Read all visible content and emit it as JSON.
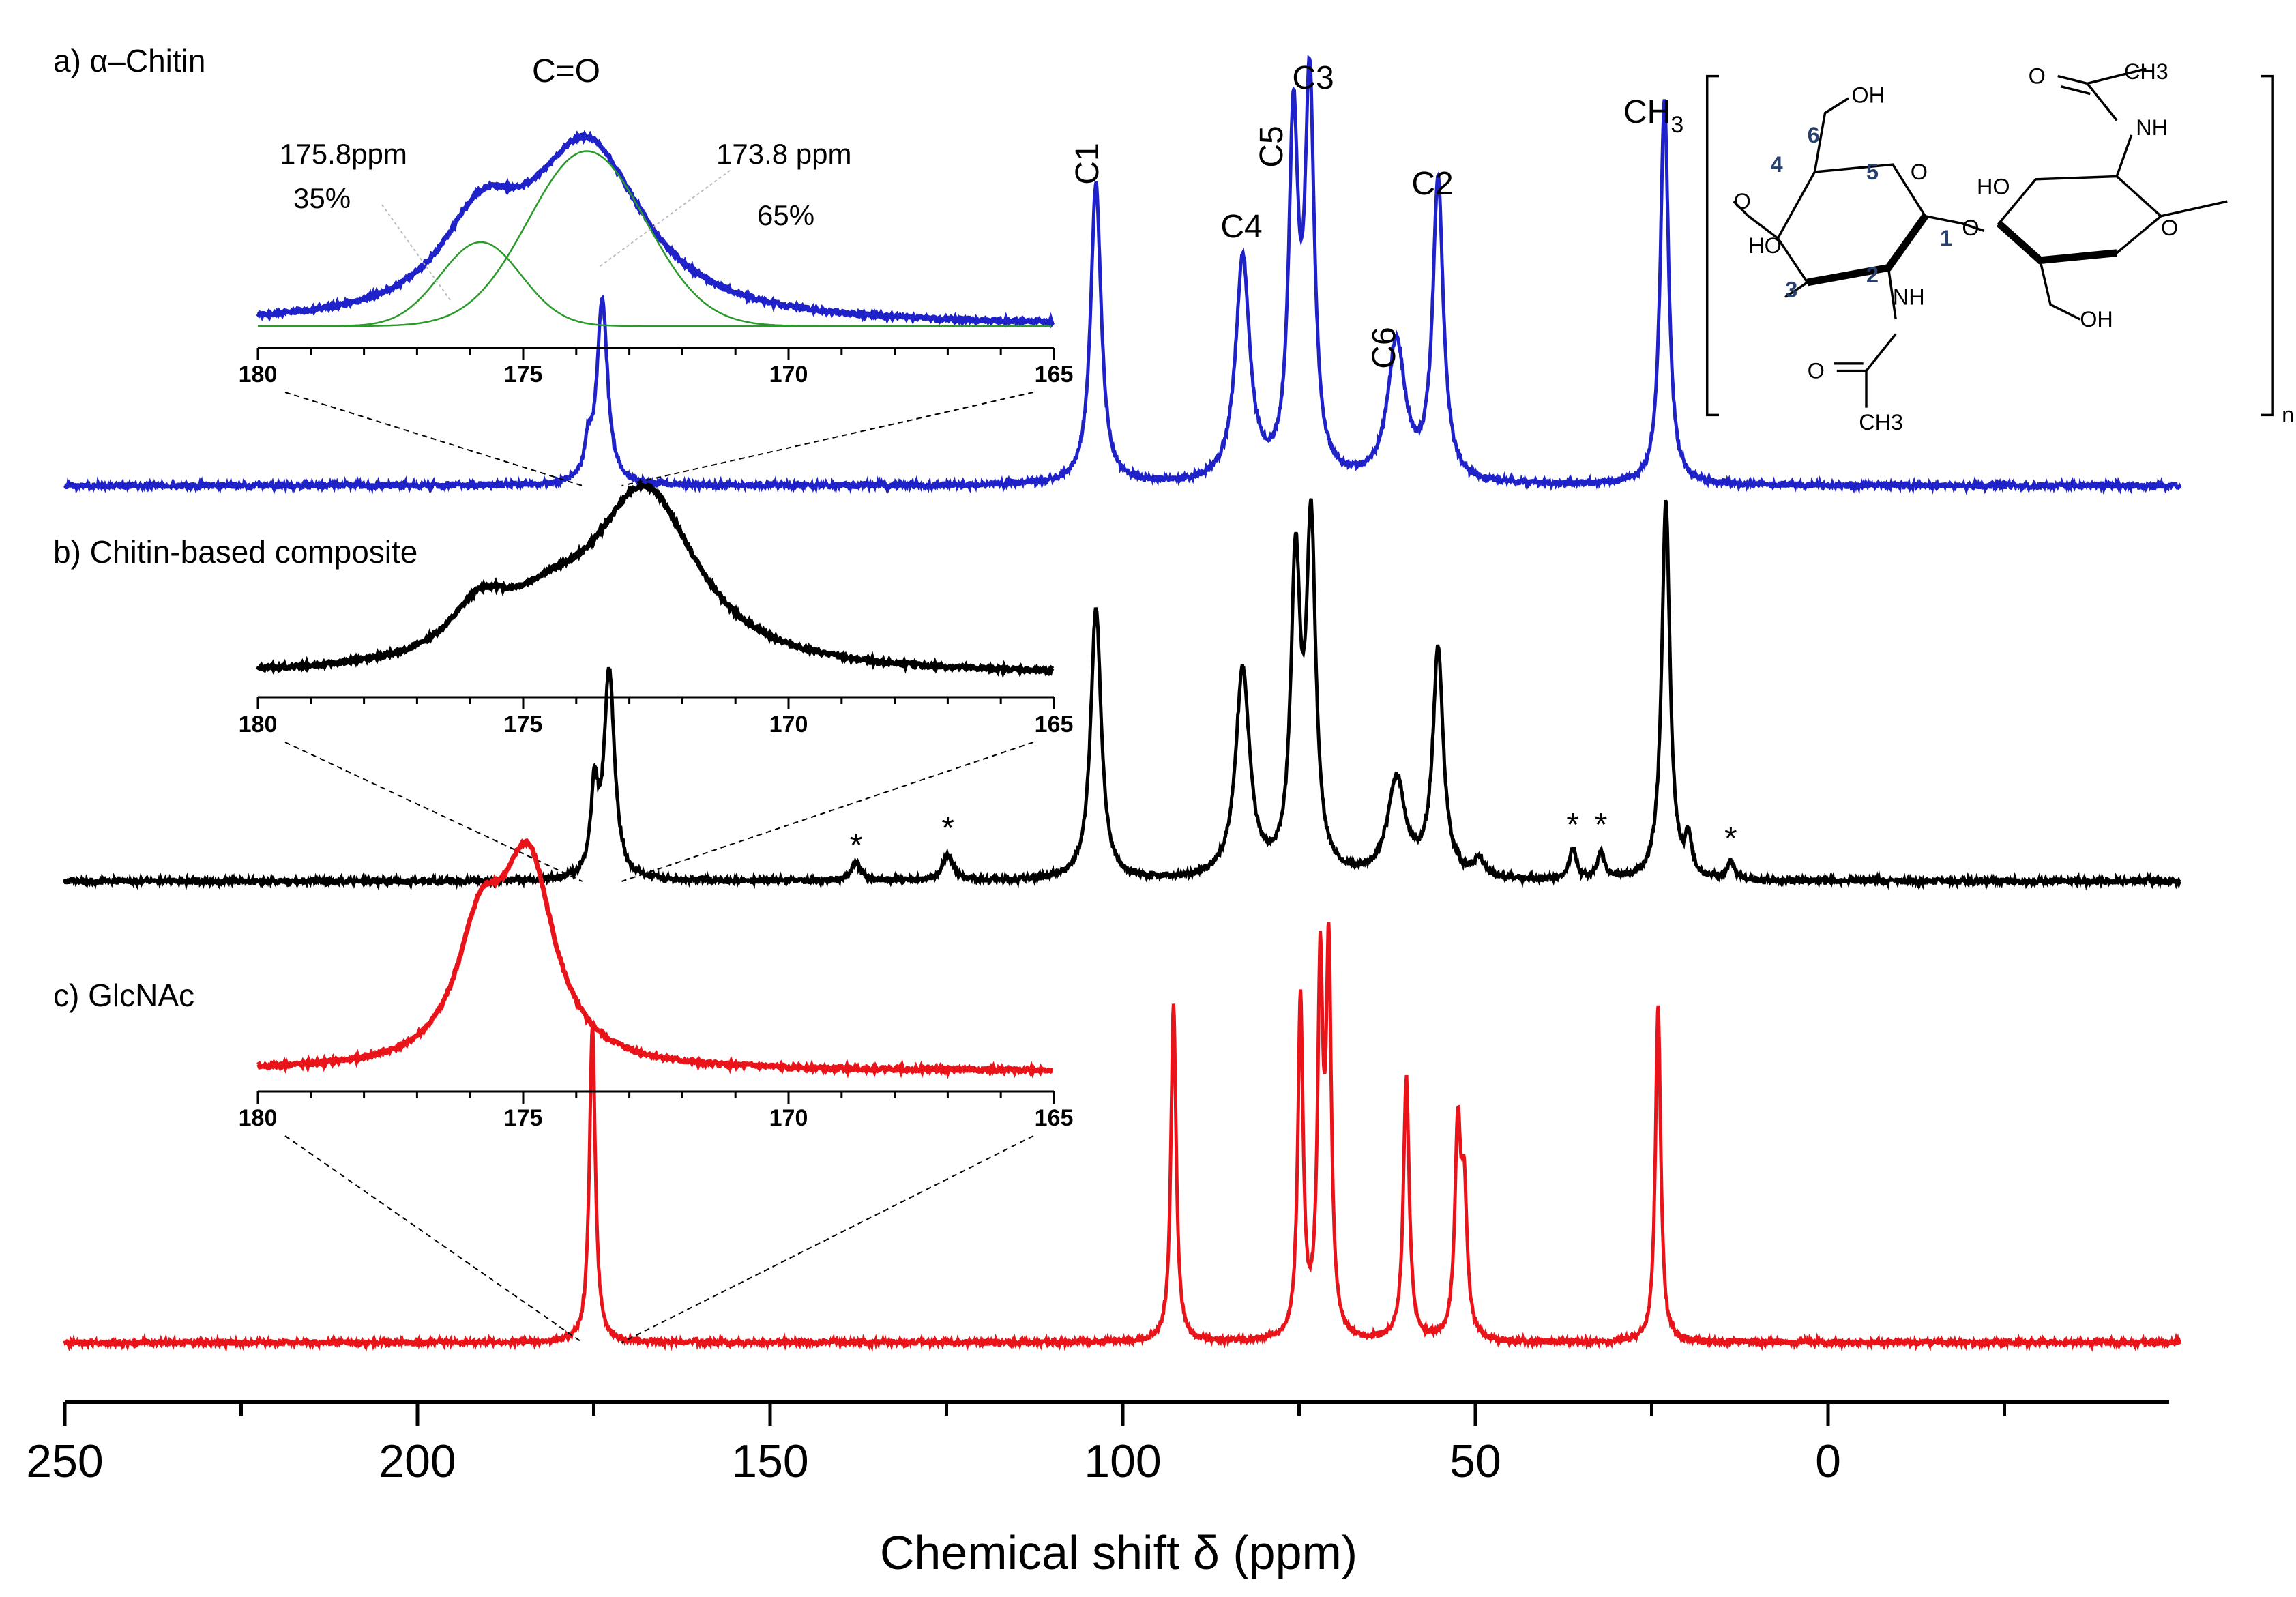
{
  "chart_data": {
    "type": "line",
    "title": "",
    "xlabel": "Chemical shift δ (ppm)",
    "xlim": [
      250,
      -50
    ],
    "reversed_x": true,
    "x_ticks": [
      {
        "value": 250,
        "label": "250"
      },
      {
        "value": 200,
        "label": "200"
      },
      {
        "value": 150,
        "label": "150"
      },
      {
        "value": 100,
        "label": "100"
      },
      {
        "value": 50,
        "label": "50"
      },
      {
        "value": 0,
        "label": "0"
      }
    ],
    "x_minor_ticks": [
      225,
      175,
      125,
      75,
      25,
      -25
    ],
    "series": [
      {
        "name": "a) α–Chitin",
        "label": "a) α–Chitin",
        "color": "#1f22c8",
        "peaks": [
          {
            "x": 173.8,
            "h": 0.48,
            "w": 0.9
          },
          {
            "x": 175.8,
            "h": 0.08,
            "w": 0.6
          },
          {
            "x": 103.8,
            "h": 0.78,
            "w": 0.9
          },
          {
            "x": 83.0,
            "h": 0.58,
            "w": 1.2
          },
          {
            "x": 75.8,
            "h": 0.9,
            "w": 0.8
          },
          {
            "x": 73.5,
            "h": 1.0,
            "w": 0.8
          },
          {
            "x": 61.2,
            "h": 0.36,
            "w": 1.5
          },
          {
            "x": 55.3,
            "h": 0.78,
            "w": 0.9
          },
          {
            "x": 23.2,
            "h": 1.0,
            "w": 0.7
          }
        ],
        "peak_labels": [
          {
            "text": "C1",
            "x": 103.8,
            "rotate": true
          },
          {
            "text": "C4",
            "x": 83.0,
            "rotate": false
          },
          {
            "text": "C5",
            "x": 76.2,
            "rotate": true
          },
          {
            "text": "C3",
            "x": 73.0,
            "rotate": false
          },
          {
            "text": "C6",
            "x": 61.5,
            "rotate": true
          },
          {
            "text": "C2",
            "x": 55.5,
            "rotate": false
          }
        ],
        "ch3_label": {
          "main": "CH",
          "sub": "3"
        }
      },
      {
        "name": "b) Chitin-based composite",
        "label": "b) Chitin-based composite",
        "color": "#000000",
        "peaks": [
          {
            "x": 172.8,
            "h": 0.55,
            "w": 0.9
          },
          {
            "x": 174.9,
            "h": 0.22,
            "w": 0.6
          },
          {
            "x": 137.8,
            "h": 0.05,
            "w": 0.8
          },
          {
            "x": 124.8,
            "h": 0.07,
            "w": 0.9
          },
          {
            "x": 103.8,
            "h": 0.72,
            "w": 0.9
          },
          {
            "x": 83.0,
            "h": 0.55,
            "w": 1.2
          },
          {
            "x": 75.5,
            "h": 0.8,
            "w": 0.8
          },
          {
            "x": 73.3,
            "h": 0.9,
            "w": 0.8
          },
          {
            "x": 61.2,
            "h": 0.26,
            "w": 1.5
          },
          {
            "x": 55.3,
            "h": 0.6,
            "w": 0.9
          },
          {
            "x": 49.5,
            "h": 0.05,
            "w": 0.8
          },
          {
            "x": 36.2,
            "h": 0.08,
            "w": 0.6
          },
          {
            "x": 32.2,
            "h": 0.07,
            "w": 0.6
          },
          {
            "x": 23.0,
            "h": 1.0,
            "w": 0.7
          },
          {
            "x": 19.8,
            "h": 0.1,
            "w": 0.5
          },
          {
            "x": 13.8,
            "h": 0.05,
            "w": 0.6
          }
        ],
        "stars": [
          137.8,
          124.8,
          36.2,
          32.2,
          13.8
        ],
        "star_symbol": "*"
      },
      {
        "name": "c) GlcNAc",
        "label": "c) GlcNAc",
        "color": "#e8141a",
        "peaks": [
          {
            "x": 175.2,
            "h": 0.94,
            "w": 0.5
          },
          {
            "x": 92.8,
            "h": 1.0,
            "w": 0.45
          },
          {
            "x": 74.8,
            "h": 1.0,
            "w": 0.45
          },
          {
            "x": 72.0,
            "h": 1.05,
            "w": 0.45
          },
          {
            "x": 70.8,
            "h": 1.1,
            "w": 0.45
          },
          {
            "x": 59.8,
            "h": 0.78,
            "w": 0.5
          },
          {
            "x": 52.5,
            "h": 0.6,
            "w": 0.5
          },
          {
            "x": 51.6,
            "h": 0.4,
            "w": 0.5
          },
          {
            "x": 24.1,
            "h": 1.0,
            "w": 0.45
          }
        ]
      }
    ],
    "insets": [
      {
        "name": "a) inset",
        "color": "#1f22c8",
        "fit_color": "#2a9a2a",
        "x_ticks": [
          "180",
          "175",
          "170",
          "165"
        ],
        "title": "C=O",
        "components": [
          {
            "x": 175.8,
            "h": 0.48,
            "w": 0.9,
            "ppm_label": "175.8ppm",
            "pct_label": "35%"
          },
          {
            "x": 173.8,
            "h": 1.0,
            "w": 1.3,
            "ppm_label": "173.8 ppm",
            "pct_label": "65%"
          }
        ]
      },
      {
        "name": "b) inset",
        "color": "#000000",
        "x_ticks": [
          "180",
          "175",
          "170",
          "165"
        ],
        "components": [
          {
            "x": 175.8,
            "h": 0.25,
            "w": 0.7
          },
          {
            "x": 172.7,
            "h": 0.9,
            "w": 1.2
          },
          {
            "x": 174.5,
            "h": 0.2,
            "w": 1.0
          }
        ]
      },
      {
        "name": "c) inset",
        "color": "#e8141a",
        "x_ticks": [
          "180",
          "175",
          "170",
          "165"
        ],
        "components": [
          {
            "x": 175.8,
            "h": 0.62,
            "w": 0.55
          },
          {
            "x": 174.9,
            "h": 1.0,
            "w": 0.6
          }
        ]
      }
    ],
    "structure": {
      "labels": {
        "ch3_top": "CH3",
        "o_top": "O",
        "nh_top": "NH",
        "ho_right": "HO",
        "o_ring_right": "O",
        "oh_right": "OH",
        "oh_left": "OH",
        "c6": "6",
        "c4": "4",
        "c5": "5",
        "o_ring_left": "O",
        "o_link_left": "O",
        "ho_left": "HO",
        "c3": "3",
        "c2": "2",
        "c1": "1",
        "o_glyco": "O",
        "nh_bottom": "NH",
        "o_bottom": "O",
        "ch3_bottom": "CH3",
        "n": "n"
      }
    }
  }
}
